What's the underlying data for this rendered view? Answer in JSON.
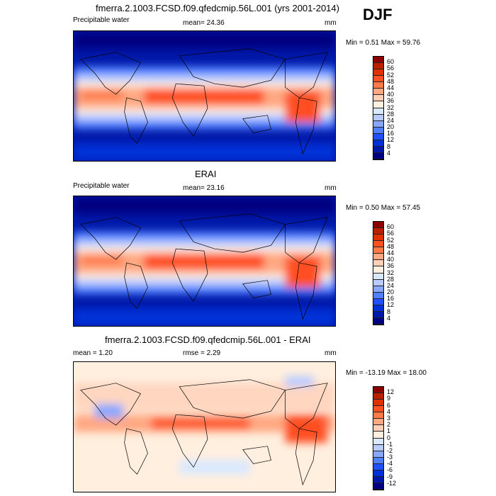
{
  "season": "DJF",
  "units": "mm",
  "panels": [
    {
      "title": "fmerra.2.1003.FCSD.f09.qfedcmip.56L.001 (yrs 2001-2014)",
      "left": "Precipitable water",
      "center": "mean=  24.36",
      "minmax": "Min =   0.51 Max =  59.76"
    },
    {
      "title": "ERAI",
      "left": "Precipitable water",
      "center": "mean=  23.16",
      "minmax": "Min =   0.50 Max =  57.45"
    },
    {
      "title": "fmerra.2.1003.FCSD.f09.qfedcmip.56L.001 - ERAI",
      "left": "mean =   1.20",
      "center": "rmse =   2.29",
      "minmax": "Min = -13.19 Max =  18.00"
    }
  ],
  "chart_data": [
    {
      "type": "heatmap",
      "title": "fmerra.2.1003.FCSD.f09.qfedcmip.56L.001 (yrs 2001-2014)",
      "variable": "Precipitable water",
      "units": "mm",
      "mean": 24.36,
      "min": 0.51,
      "max": 59.76,
      "levels": [
        "60",
        "56",
        "52",
        "48",
        "44",
        "40",
        "36",
        "32",
        "28",
        "24",
        "20",
        "16",
        "12",
        "8",
        "4"
      ]
    },
    {
      "type": "heatmap",
      "title": "ERAI",
      "variable": "Precipitable water",
      "units": "mm",
      "mean": 23.16,
      "min": 0.5,
      "max": 57.45,
      "levels": [
        "60",
        "56",
        "52",
        "48",
        "44",
        "40",
        "36",
        "32",
        "28",
        "24",
        "20",
        "16",
        "12",
        "8",
        "4"
      ]
    },
    {
      "type": "heatmap",
      "title": "fmerra.2.1003.FCSD.f09.qfedcmip.56L.001 - ERAI",
      "units": "mm",
      "mean": 1.2,
      "rmse": 2.29,
      "min": -13.19,
      "max": 18.0,
      "levels": [
        "12",
        "9",
        "6",
        "4",
        "3",
        "2",
        "1",
        "0",
        "-1",
        "-2",
        "-3",
        "-4",
        "-6",
        "-9",
        "-12"
      ]
    }
  ],
  "colors": [
    "#8b0000",
    "#b82000",
    "#e03200",
    "#ff5020",
    "#ff7a48",
    "#ffa882",
    "#ffcfb8",
    "#ffefdf",
    "#d8e8ff",
    "#b8ccff",
    "#88a8ff",
    "#5080ff",
    "#2050ff",
    "#0030d8",
    "#0018a8",
    "#000080"
  ]
}
